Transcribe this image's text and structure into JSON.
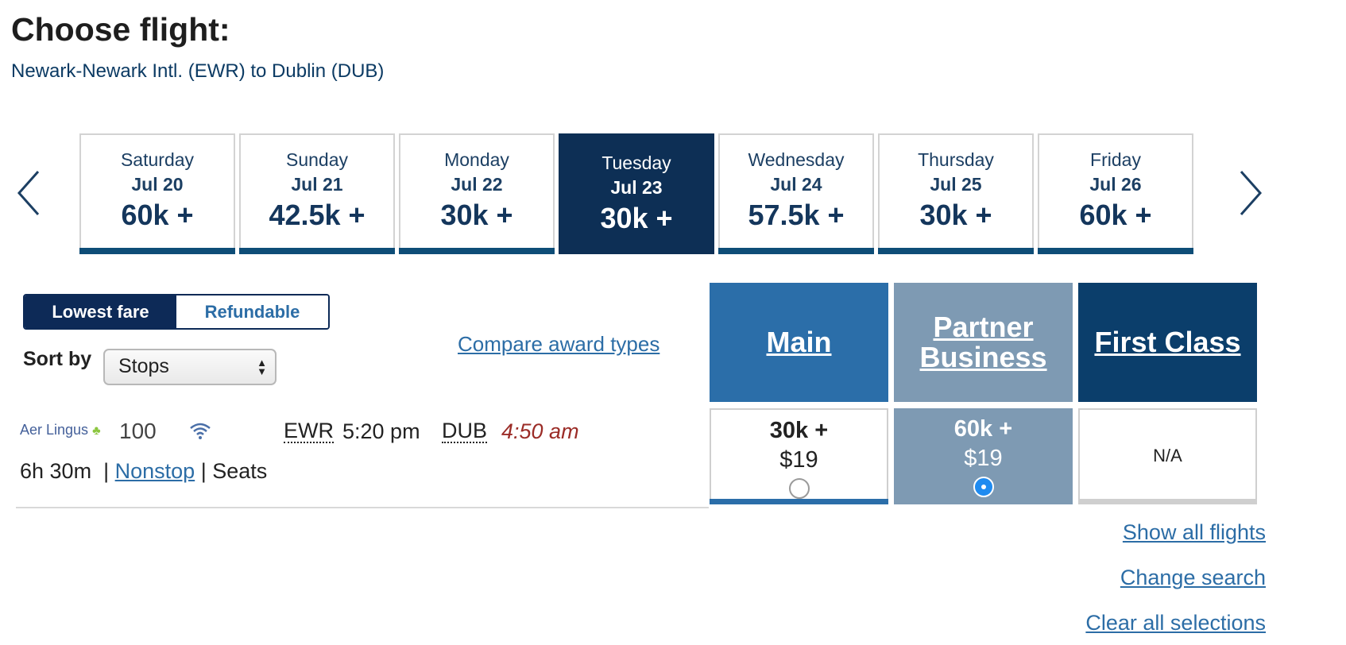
{
  "header": {
    "title": "Choose flight:",
    "route": "Newark-Newark Intl. (EWR) to Dublin (DUB)"
  },
  "carousel": {
    "prev_icon": "chevron-left-icon",
    "next_icon": "chevron-right-icon",
    "dates": [
      {
        "day": "Saturday",
        "date": "Jul 20",
        "price": "60k +",
        "active": false
      },
      {
        "day": "Sunday",
        "date": "Jul 21",
        "price": "42.5k +",
        "active": false
      },
      {
        "day": "Monday",
        "date": "Jul 22",
        "price": "30k +",
        "active": false
      },
      {
        "day": "Tuesday",
        "date": "Jul 23",
        "price": "30k +",
        "active": true
      },
      {
        "day": "Wednesday",
        "date": "Jul 24",
        "price": "57.5k +",
        "active": false
      },
      {
        "day": "Thursday",
        "date": "Jul 25",
        "price": "30k +",
        "active": false
      },
      {
        "day": "Friday",
        "date": "Jul 26",
        "price": "60k +",
        "active": false
      }
    ]
  },
  "filters": {
    "lowest_fare": "Lowest fare",
    "refundable": "Refundable",
    "selected": "Lowest fare",
    "sort_label": "Sort by",
    "sort_value": "Stops",
    "compare_link": "Compare award types"
  },
  "cabins": {
    "main": "Main",
    "partner": "Partner Business",
    "first": "First Class"
  },
  "flight": {
    "airline": "Aer Lingus",
    "number": "100",
    "origin": "EWR",
    "departure": "5:20 pm",
    "destination": "DUB",
    "arrival": "4:50 am",
    "duration": "6h 30m",
    "stops": "Nonstop",
    "seats": "Seats",
    "wifi_icon": "wifi-icon",
    "fares": {
      "main": {
        "miles": "30k +",
        "tax": "$19",
        "selected": false
      },
      "partner": {
        "miles": "60k +",
        "tax": "$19",
        "selected": true
      },
      "first": {
        "value": "N/A"
      }
    }
  },
  "links": {
    "show_all": "Show all flights",
    "change_search": "Change search",
    "clear_all": "Clear all selections"
  },
  "colors": {
    "navy": "#0d2f55",
    "main_blue": "#2b6ea9",
    "partner_gray_blue": "#7e9ab3",
    "first_navy": "#0b3e6b",
    "link_blue": "#2c6da6",
    "arrival_red": "#9b2c27"
  }
}
